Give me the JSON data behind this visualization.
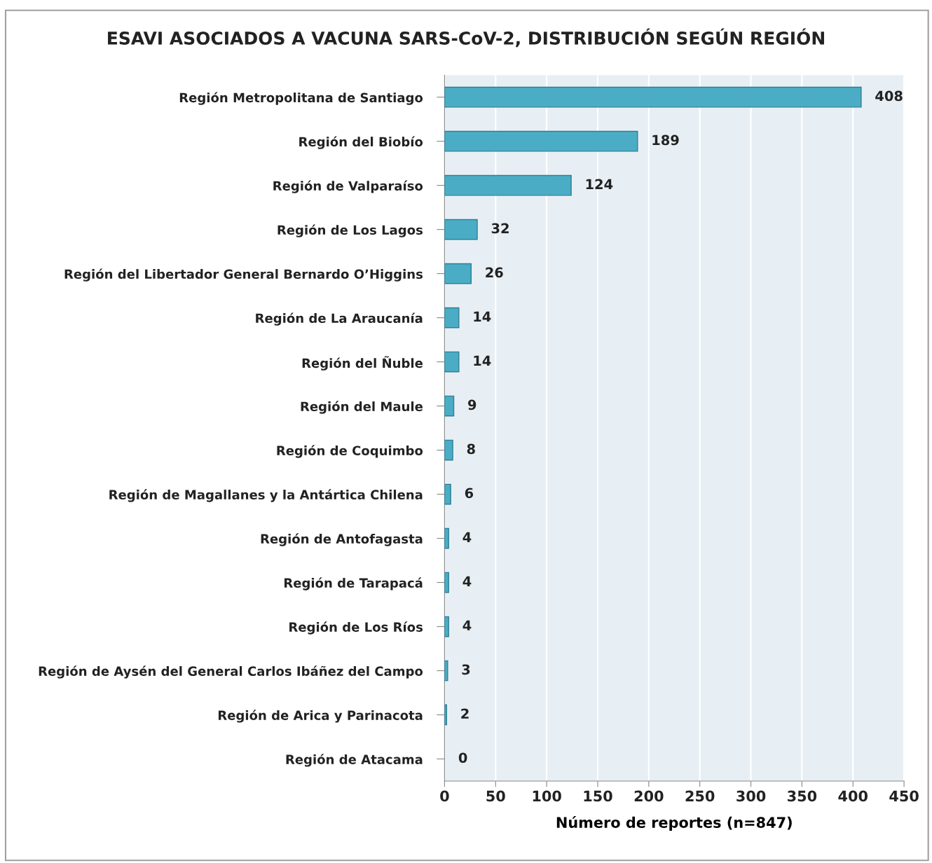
{
  "chart_data": {
    "type": "bar",
    "orientation": "horizontal",
    "title": "ESAVI ASOCIADOS A VACUNA SARS-CoV-2, DISTRIBUCIÓN SEGÚN REGIÓN",
    "xlabel": "Número de reportes (n=847)",
    "categories": [
      "Región Metropolitana de Santiago",
      "Región del Biobío",
      "Región de Valparaíso",
      "Región de Los Lagos",
      "Región del Libertador General Bernardo O’Higgins",
      "Región de La Araucanía",
      "Región del Ñuble",
      "Región del Maule",
      "Región de Coquimbo",
      "Región de Magallanes y la Antártica Chilena",
      "Región de Antofagasta",
      "Región de Tarapacá",
      "Región de Los Ríos",
      "Región de Aysén del General Carlos Ibáñez del Campo",
      "Región de Arica y Parinacota",
      "Región de Atacama"
    ],
    "values": [
      408,
      189,
      124,
      32,
      26,
      14,
      14,
      9,
      8,
      6,
      4,
      4,
      4,
      3,
      2,
      0
    ],
    "color": "#4bacc6",
    "xlim": [
      0,
      450
    ],
    "xticks": [
      0,
      50,
      100,
      150,
      200,
      250,
      300,
      350,
      400,
      450
    ],
    "grid": "x",
    "data_labels": true
  }
}
